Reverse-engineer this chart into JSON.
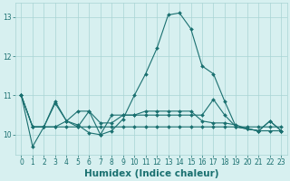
{
  "xlabel": "Humidex (Indice chaleur)",
  "ylabel": "",
  "background_color": "#d7f0f0",
  "grid_color": "#a8d4d4",
  "line_color": "#1a7070",
  "xlim": [
    -0.5,
    23.5
  ],
  "ylim": [
    9.5,
    13.35
  ],
  "yticks": [
    10,
    11,
    12,
    13
  ],
  "xticks": [
    0,
    1,
    2,
    3,
    4,
    5,
    6,
    7,
    8,
    9,
    10,
    11,
    12,
    13,
    14,
    15,
    16,
    17,
    18,
    19,
    20,
    21,
    22,
    23
  ],
  "lines": [
    {
      "x": [
        0,
        1,
        2,
        3,
        4,
        5,
        6,
        7,
        8,
        9,
        10,
        11,
        12,
        13,
        14,
        15,
        16,
        17,
        18,
        19,
        20,
        21,
        22,
        23
      ],
      "y": [
        11.0,
        9.7,
        10.2,
        10.8,
        10.35,
        10.25,
        10.05,
        10.0,
        10.1,
        10.4,
        11.0,
        11.55,
        12.2,
        13.05,
        13.1,
        12.7,
        11.75,
        11.55,
        10.85,
        10.2,
        10.15,
        10.1,
        10.35,
        10.1
      ]
    },
    {
      "x": [
        0,
        1,
        2,
        3,
        4,
        5,
        6,
        7,
        8,
        9,
        10,
        11,
        12,
        13,
        14,
        15,
        16,
        17,
        18,
        19,
        20,
        21,
        22,
        23
      ],
      "y": [
        11.0,
        10.2,
        10.2,
        10.2,
        10.2,
        10.2,
        10.2,
        10.2,
        10.2,
        10.2,
        10.2,
        10.2,
        10.2,
        10.2,
        10.2,
        10.2,
        10.2,
        10.2,
        10.2,
        10.2,
        10.2,
        10.2,
        10.2,
        10.2
      ]
    },
    {
      "x": [
        0,
        1,
        2,
        3,
        4,
        5,
        6,
        7,
        8,
        9,
        10,
        11,
        12,
        13,
        14,
        15,
        16,
        17,
        18,
        19,
        20,
        21,
        22,
        23
      ],
      "y": [
        11.0,
        10.2,
        10.2,
        10.85,
        10.35,
        10.6,
        10.6,
        10.0,
        10.5,
        10.5,
        10.5,
        10.5,
        10.5,
        10.5,
        10.5,
        10.5,
        10.5,
        10.9,
        10.5,
        10.2,
        10.15,
        10.1,
        10.35,
        10.1
      ]
    },
    {
      "x": [
        0,
        1,
        2,
        3,
        4,
        5,
        6,
        7,
        8,
        9,
        10,
        11,
        12,
        13,
        14,
        15,
        16,
        17,
        18,
        19,
        20,
        21,
        22,
        23
      ],
      "y": [
        11.0,
        10.2,
        10.2,
        10.2,
        10.35,
        10.2,
        10.6,
        10.3,
        10.3,
        10.5,
        10.5,
        10.6,
        10.6,
        10.6,
        10.6,
        10.6,
        10.35,
        10.3,
        10.3,
        10.25,
        10.15,
        10.1,
        10.1,
        10.1
      ]
    }
  ],
  "marker": "D",
  "marker_size": 2.0,
  "line_width": 0.8,
  "tick_label_fontsize": 5.5,
  "xlabel_fontsize": 7.5,
  "xlabel_fontweight": "bold"
}
